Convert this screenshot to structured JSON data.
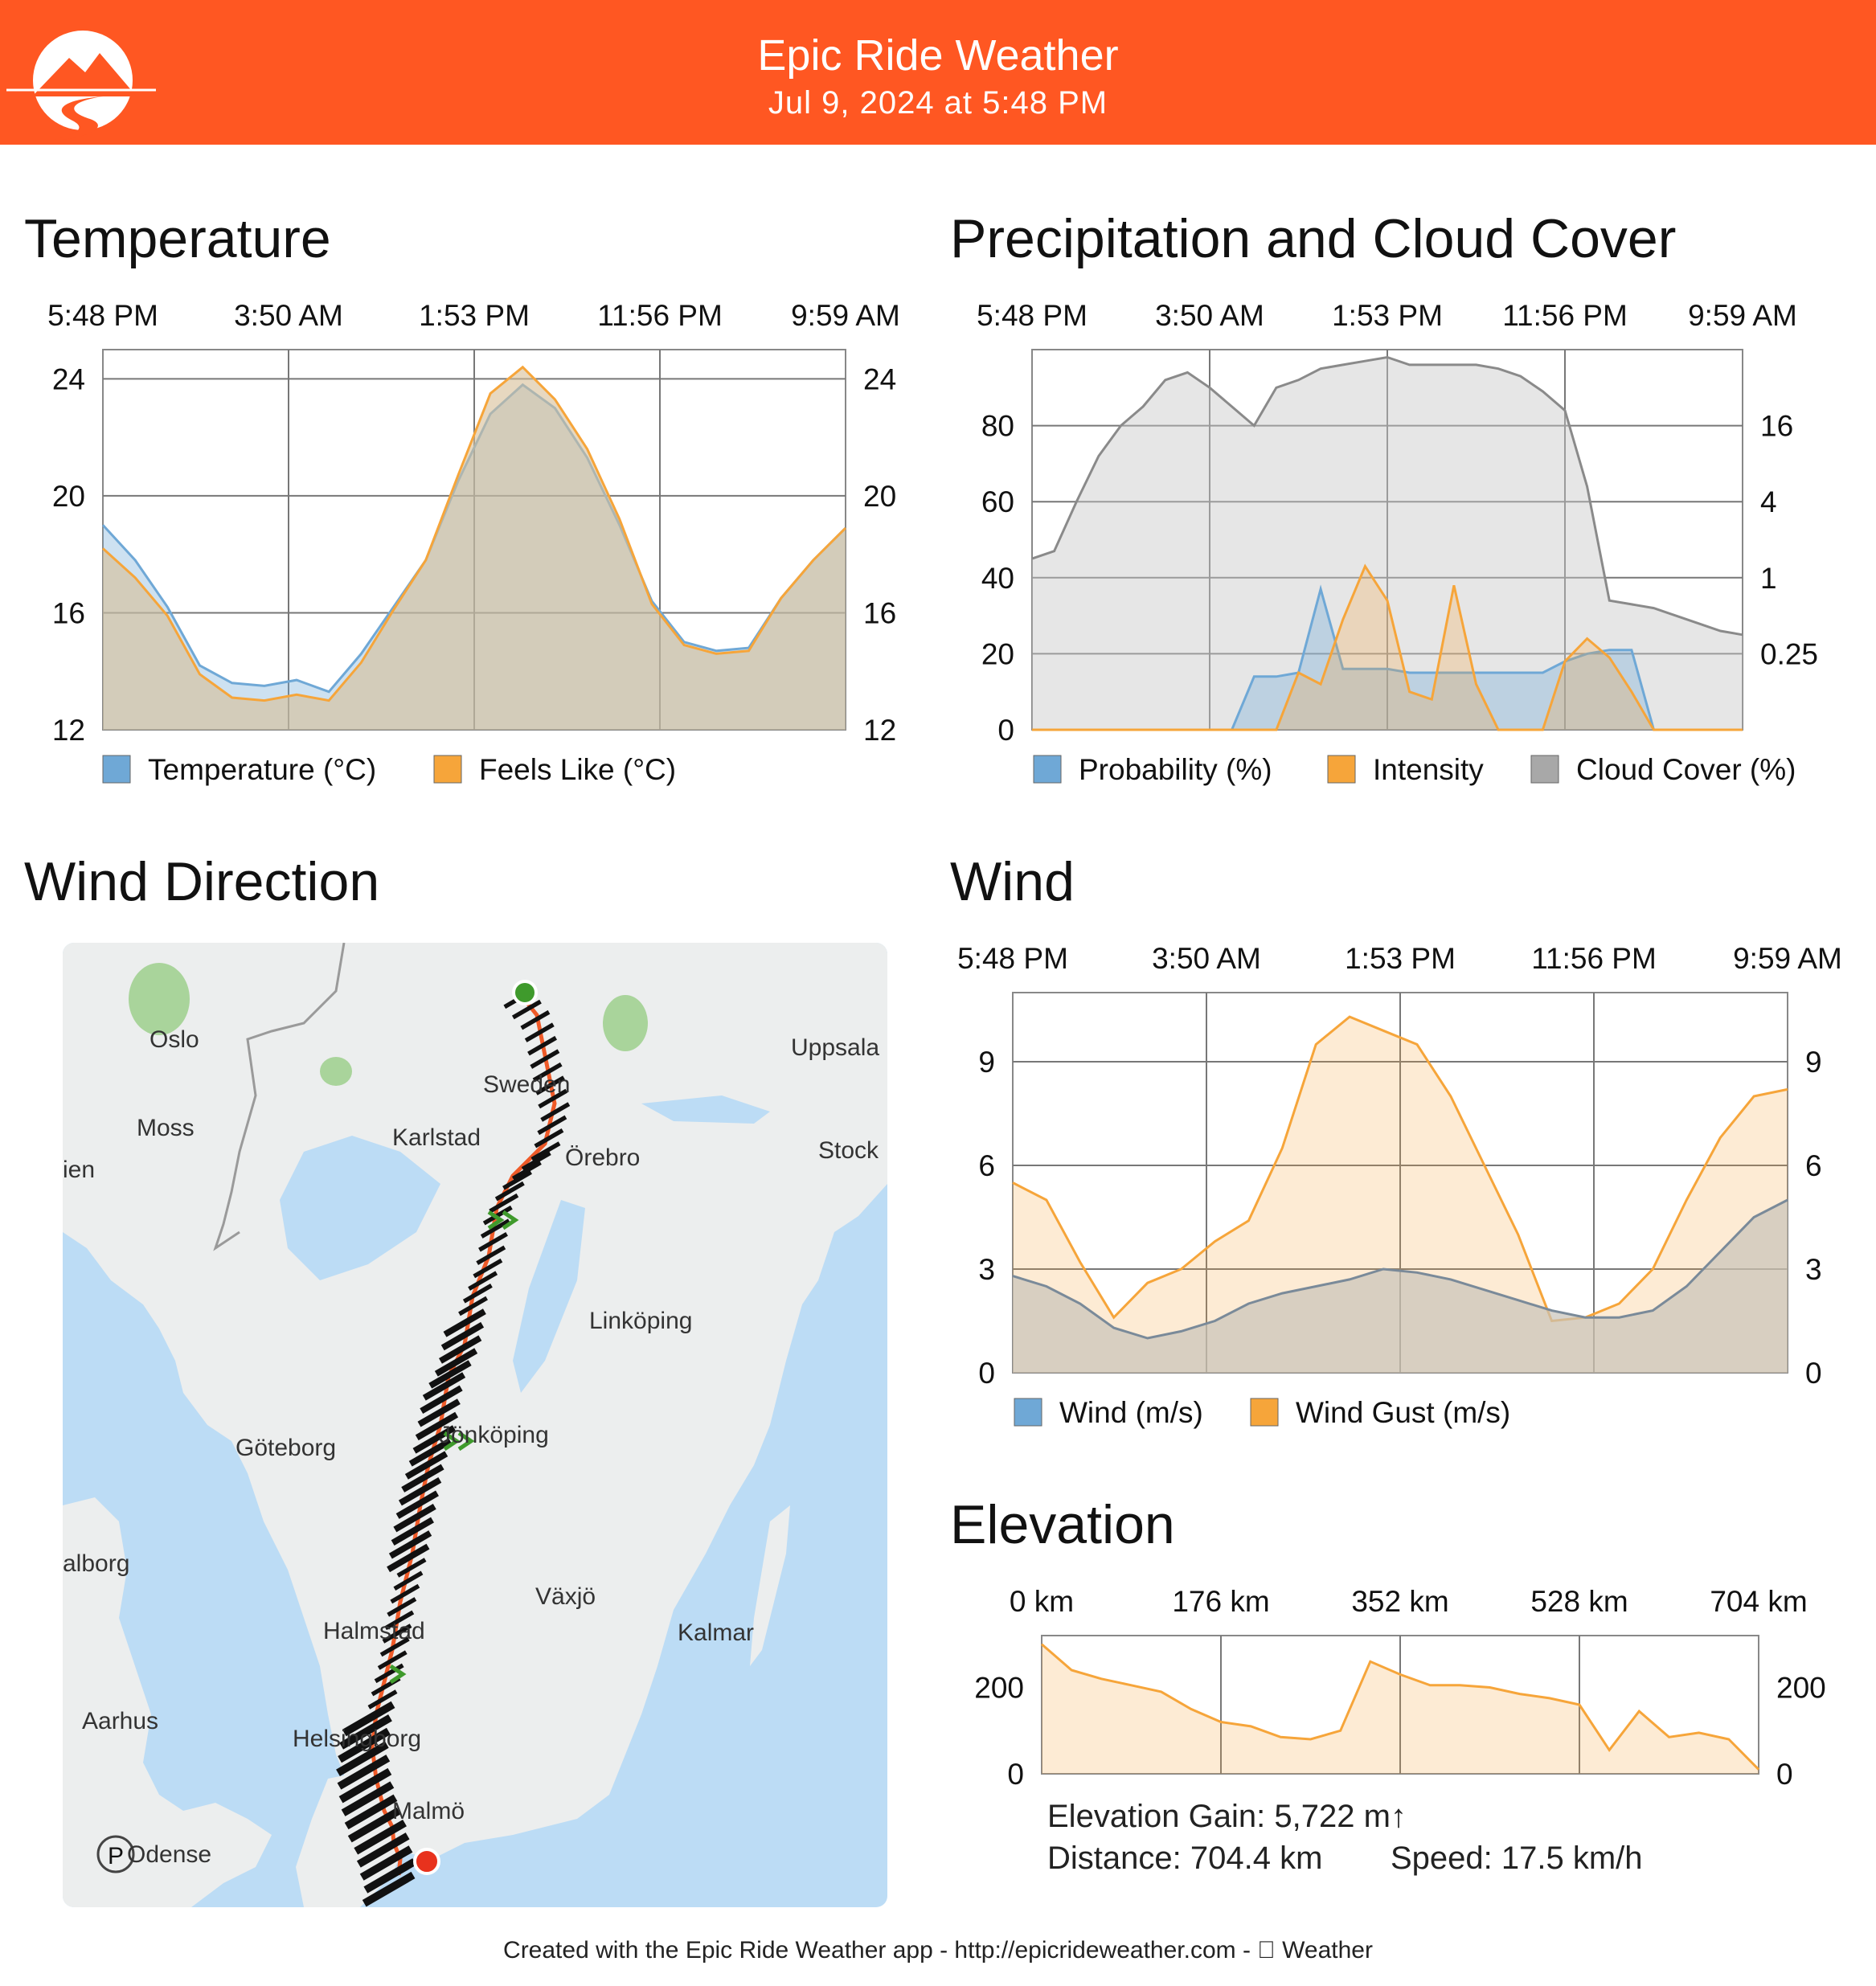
{
  "app": {
    "title": "Epic Ride Weather",
    "subtitle": "Jul 9, 2024 at 5:48 PM"
  },
  "time_labels": [
    "5:48 PM",
    "3:50 AM",
    "1:53 PM",
    "11:56 PM",
    "9:59 AM"
  ],
  "colors": {
    "header": "#ff5722",
    "temperature": "#6fa8d6",
    "feels_like": "#f6a53a",
    "probability": "#6fa8d6",
    "intensity": "#f6a53a",
    "cloud": "#a8a8a8",
    "route": "#ef5a28",
    "start": "#3f9a2c",
    "end": "#e8321d",
    "water": "#bcdcf5",
    "land": "#eceeee"
  },
  "temperature": {
    "title": "Temperature",
    "chart_data": {
      "type": "area",
      "title": "Temperature",
      "x_ticks": [
        "5:48 PM",
        "3:50 AM",
        "1:53 PM",
        "11:56 PM",
        "9:59 AM"
      ],
      "ylim": [
        12,
        25
      ],
      "y_ticks": [
        12,
        16,
        20,
        24
      ],
      "series": [
        {
          "name": "Temperature (°C)",
          "values": [
            19.0,
            17.8,
            16.2,
            14.2,
            13.6,
            13.5,
            13.7,
            13.3,
            14.6,
            16.2,
            17.8,
            20.5,
            22.8,
            23.8,
            23.0,
            21.3,
            19.0,
            16.4,
            15.0,
            14.7,
            14.8,
            16.5,
            17.8,
            18.9
          ]
        },
        {
          "name": "Feels Like (°C)",
          "values": [
            18.2,
            17.2,
            15.9,
            13.9,
            13.1,
            13.0,
            13.2,
            13.0,
            14.3,
            16.1,
            17.8,
            20.7,
            23.5,
            24.4,
            23.3,
            21.6,
            19.2,
            16.3,
            14.9,
            14.6,
            14.7,
            16.5,
            17.8,
            18.9
          ]
        }
      ]
    }
  },
  "precipitation": {
    "title": "Precipitation and Cloud Cover",
    "chart_data": {
      "type": "area",
      "title": "Precipitation and Cloud Cover",
      "x_ticks": [
        "5:48 PM",
        "3:50 AM",
        "1:53 PM",
        "11:56 PM",
        "9:59 AM"
      ],
      "ylim": [
        0,
        100
      ],
      "y_ticks_left": [
        0,
        20,
        40,
        60,
        80
      ],
      "y_ticks_right": [
        "0.25",
        "1",
        "4",
        "16"
      ],
      "series": [
        {
          "name": "Probability (%)",
          "values": [
            0,
            0,
            0,
            0,
            0,
            0,
            0,
            0,
            0,
            0,
            14,
            14,
            15,
            37,
            16,
            16,
            16,
            15,
            15,
            15,
            15,
            15,
            15,
            15,
            18,
            20,
            21,
            21,
            0,
            0,
            0,
            0,
            0
          ]
        },
        {
          "name": "Intensity",
          "values": [
            0,
            0,
            0,
            0,
            0,
            0,
            0,
            0,
            0,
            0,
            0,
            0,
            15,
            12,
            29,
            43,
            34,
            10,
            8,
            38,
            12,
            0,
            0,
            0,
            18,
            24,
            19,
            10,
            0,
            0,
            0,
            0,
            0
          ]
        },
        {
          "name": "Cloud Cover (%)",
          "values": [
            45,
            47,
            60,
            72,
            80,
            85,
            92,
            94,
            90,
            85,
            80,
            90,
            92,
            95,
            96,
            97,
            98,
            96,
            96,
            96,
            96,
            95,
            93,
            89,
            84,
            64,
            34,
            33,
            32,
            30,
            28,
            26,
            25
          ]
        }
      ]
    }
  },
  "wind_direction": {
    "title": "Wind Direction",
    "map_labels": [
      "Oslo",
      "Uppsala",
      "Sweden",
      "Moss",
      "Karlstad",
      "Örebro",
      "Stock",
      "ien",
      "Linköping",
      "Göteborg",
      "Jönköping",
      "Växjö",
      "alborg",
      "Kalmar",
      "Halmstad",
      "Aarhus",
      "Helsingborg",
      "Malmö",
      "Odense"
    ]
  },
  "wind": {
    "title": "Wind",
    "chart_data": {
      "type": "area",
      "title": "Wind",
      "x_ticks": [
        "5:48 PM",
        "3:50 AM",
        "1:53 PM",
        "11:56 PM",
        "9:59 AM"
      ],
      "ylim": [
        0,
        11
      ],
      "y_ticks": [
        0,
        3,
        6,
        9
      ],
      "series": [
        {
          "name": "Wind (m/s)",
          "values": [
            2.8,
            2.5,
            2.0,
            1.3,
            1.0,
            1.2,
            1.5,
            2.0,
            2.3,
            2.5,
            2.7,
            3.0,
            2.9,
            2.7,
            2.4,
            2.1,
            1.8,
            1.6,
            1.6,
            1.8,
            2.5,
            3.5,
            4.5,
            5.0
          ]
        },
        {
          "name": "Wind Gust (m/s)",
          "values": [
            5.5,
            5.0,
            3.2,
            1.6,
            2.6,
            3.0,
            3.8,
            4.4,
            6.5,
            9.5,
            10.3,
            9.9,
            9.5,
            8.0,
            6.0,
            4.0,
            1.5,
            1.6,
            2.0,
            3.0,
            5.0,
            6.8,
            8.0,
            8.2
          ]
        }
      ]
    }
  },
  "elevation": {
    "title": "Elevation",
    "chart_data": {
      "type": "area",
      "title": "Elevation",
      "x_ticks": [
        "0 km",
        "176 km",
        "352 km",
        "528 km",
        "704 km"
      ],
      "ylim": [
        0,
        320
      ],
      "y_ticks": [
        0,
        200
      ],
      "series": [
        {
          "name": "Elevation (m)",
          "values": [
            300,
            240,
            220,
            205,
            190,
            150,
            120,
            110,
            85,
            80,
            100,
            260,
            230,
            205,
            205,
            200,
            185,
            175,
            160,
            55,
            145,
            85,
            95,
            80,
            10
          ]
        }
      ]
    },
    "gain_text": "Elevation Gain: 5,722 m↑",
    "distance_text": "Distance: 704.4 km",
    "speed_text": "Speed: 17.5 km/h"
  },
  "footer": "Created with the Epic Ride Weather app - http://epicrideweather.com -  Weather"
}
